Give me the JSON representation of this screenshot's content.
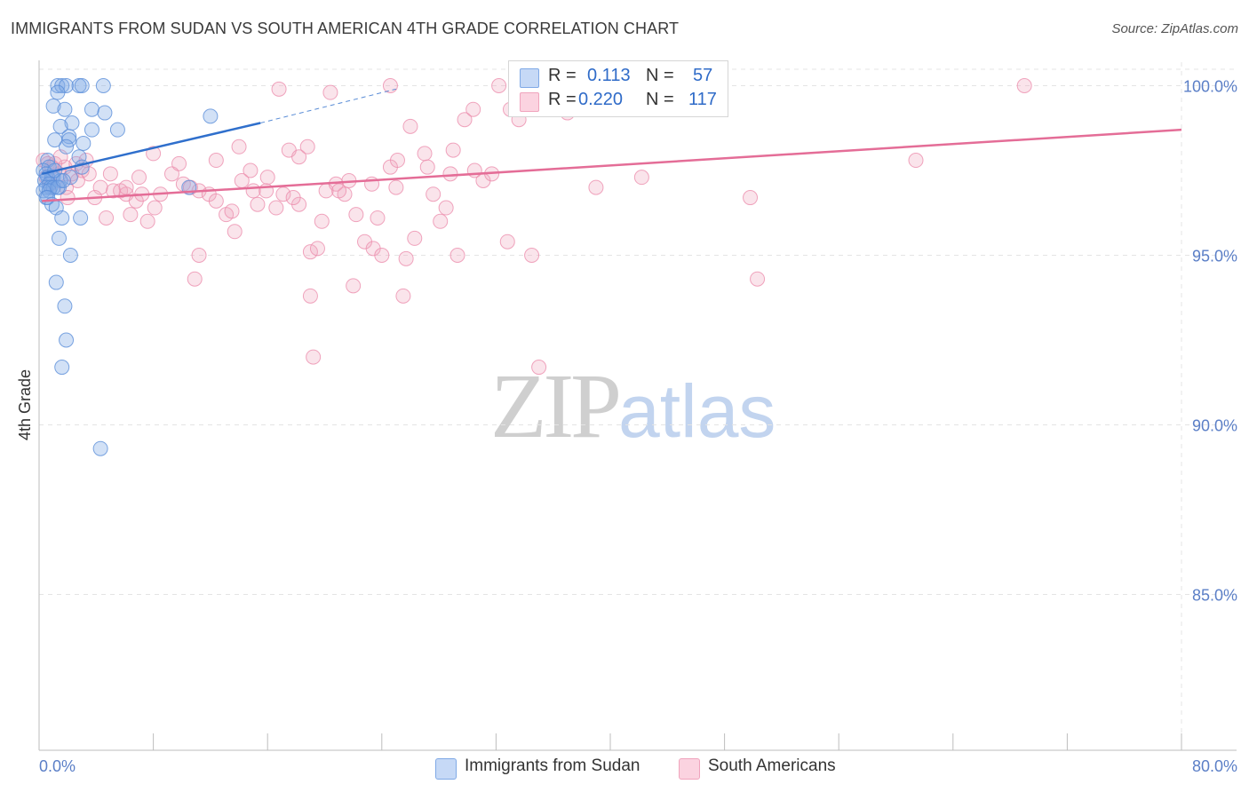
{
  "title": "IMMIGRANTS FROM SUDAN VS SOUTH AMERICAN 4TH GRADE CORRELATION CHART",
  "source": "Source: ZipAtlas.com",
  "watermark": {
    "zip": "ZIP",
    "atlas": "atlas"
  },
  "legend": {
    "r_key": "R =",
    "n_key": "N =",
    "rows": [
      {
        "r": "0.113",
        "n": "57",
        "color": "#7fa9e6"
      },
      {
        "r": "0.220",
        "n": "117",
        "color": "#f0a4bd"
      }
    ]
  },
  "colors": {
    "blue": "#5b8fd9",
    "pink": "#ec8fae",
    "blue_line": "#2f6fcc",
    "pink_line": "#e46d97",
    "grid": "#e4e4e4",
    "tick_text": "#5b7fc7"
  },
  "chart_data": {
    "type": "scatter",
    "title": "IMMIGRANTS FROM SUDAN VS SOUTH AMERICAN 4TH GRADE CORRELATION CHART",
    "xlabel": "",
    "ylabel": "4th Grade",
    "xlim": [
      0,
      80
    ],
    "ylim": [
      80.5,
      100.8
    ],
    "x_tick_labels": [
      "0.0%",
      "80.0%"
    ],
    "y_ticks": [
      {
        "value": 100,
        "label": "100.0%"
      },
      {
        "value": 95,
        "label": "95.0%"
      },
      {
        "value": 90,
        "label": "90.0%"
      },
      {
        "value": 85,
        "label": "85.0%"
      }
    ],
    "grid": true,
    "legend_position": "bottom",
    "series": [
      {
        "name": "Immigrants from Sudan",
        "R": 0.113,
        "N": 57,
        "trend": {
          "x": [
            0.2,
            15.5
          ],
          "y": [
            97.4,
            98.9
          ]
        },
        "trend_extension": {
          "x": [
            15.5,
            25.0
          ],
          "y": [
            98.9,
            99.9
          ]
        },
        "points": [
          [
            1.3,
            100.0
          ],
          [
            1.6,
            100.0
          ],
          [
            1.9,
            100.0
          ],
          [
            2.8,
            100.0
          ],
          [
            3.0,
            100.0
          ],
          [
            4.5,
            100.0
          ],
          [
            1.3,
            99.8
          ],
          [
            1.0,
            99.4
          ],
          [
            1.8,
            99.3
          ],
          [
            3.7,
            99.3
          ],
          [
            4.6,
            99.2
          ],
          [
            12.0,
            99.1
          ],
          [
            2.3,
            98.9
          ],
          [
            1.5,
            98.8
          ],
          [
            3.7,
            98.7
          ],
          [
            5.5,
            98.7
          ],
          [
            2.1,
            98.5
          ],
          [
            1.1,
            98.4
          ],
          [
            2.1,
            98.4
          ],
          [
            3.1,
            98.3
          ],
          [
            1.9,
            98.2
          ],
          [
            2.8,
            97.9
          ],
          [
            0.6,
            97.8
          ],
          [
            0.7,
            97.6
          ],
          [
            3.0,
            97.6
          ],
          [
            0.3,
            97.5
          ],
          [
            0.5,
            97.4
          ],
          [
            1.0,
            97.3
          ],
          [
            0.6,
            97.3
          ],
          [
            0.9,
            97.3
          ],
          [
            0.4,
            97.2
          ],
          [
            1.5,
            97.2
          ],
          [
            0.7,
            97.1
          ],
          [
            0.5,
            97.0
          ],
          [
            0.8,
            97.0
          ],
          [
            1.4,
            97.0
          ],
          [
            1.0,
            97.0
          ],
          [
            0.3,
            96.9
          ],
          [
            0.7,
            96.9
          ],
          [
            1.3,
            97.0
          ],
          [
            0.5,
            96.7
          ],
          [
            0.6,
            96.7
          ],
          [
            0.9,
            96.5
          ],
          [
            1.2,
            96.4
          ],
          [
            1.6,
            96.1
          ],
          [
            2.9,
            96.1
          ],
          [
            1.4,
            95.5
          ],
          [
            2.2,
            95.0
          ],
          [
            1.2,
            94.2
          ],
          [
            1.8,
            93.5
          ],
          [
            1.9,
            92.5
          ],
          [
            1.6,
            91.7
          ],
          [
            4.3,
            89.3
          ],
          [
            1.1,
            97.5
          ],
          [
            2.2,
            97.3
          ],
          [
            10.5,
            97.0
          ],
          [
            1.7,
            97.2
          ]
        ]
      },
      {
        "name": "South Americans",
        "R": 0.22,
        "N": 117,
        "trend": {
          "x": [
            0.2,
            80.0
          ],
          "y": [
            96.6,
            98.7
          ]
        },
        "points": [
          [
            0.3,
            97.8
          ],
          [
            0.6,
            97.7
          ],
          [
            0.9,
            97.6
          ],
          [
            1.1,
            97.7
          ],
          [
            0.5,
            97.3
          ],
          [
            1.4,
            97.4
          ],
          [
            1.8,
            97.6
          ],
          [
            2.3,
            97.4
          ],
          [
            2.6,
            97.7
          ],
          [
            3.0,
            97.5
          ],
          [
            3.5,
            97.4
          ],
          [
            1.9,
            97.0
          ],
          [
            0.8,
            97.1
          ],
          [
            4.3,
            97.0
          ],
          [
            5.2,
            96.9
          ],
          [
            5.7,
            96.9
          ],
          [
            6.1,
            96.8
          ],
          [
            6.8,
            96.6
          ],
          [
            7.2,
            96.8
          ],
          [
            8.1,
            96.4
          ],
          [
            4.7,
            96.1
          ],
          [
            6.4,
            96.2
          ],
          [
            7.6,
            96.0
          ],
          [
            8.5,
            96.8
          ],
          [
            9.3,
            97.4
          ],
          [
            10.1,
            97.1
          ],
          [
            11.2,
            96.9
          ],
          [
            11.9,
            96.8
          ],
          [
            12.4,
            97.8
          ],
          [
            13.1,
            96.2
          ],
          [
            13.7,
            95.7
          ],
          [
            14.2,
            97.2
          ],
          [
            14.8,
            97.5
          ],
          [
            15.3,
            96.5
          ],
          [
            15.9,
            96.9
          ],
          [
            16.6,
            96.4
          ],
          [
            17.1,
            96.8
          ],
          [
            17.5,
            98.1
          ],
          [
            18.2,
            97.9
          ],
          [
            19.0,
            95.1
          ],
          [
            19.5,
            95.2
          ],
          [
            20.1,
            96.9
          ],
          [
            20.8,
            97.1
          ],
          [
            21.4,
            96.8
          ],
          [
            22.2,
            96.2
          ],
          [
            22.8,
            95.4
          ],
          [
            23.4,
            95.2
          ],
          [
            24.0,
            95.0
          ],
          [
            24.6,
            97.6
          ],
          [
            25.1,
            97.8
          ],
          [
            25.7,
            94.9
          ],
          [
            26.3,
            95.5
          ],
          [
            27.0,
            98.0
          ],
          [
            27.6,
            96.8
          ],
          [
            28.1,
            96.0
          ],
          [
            28.8,
            97.4
          ],
          [
            29.3,
            95.0
          ],
          [
            29.8,
            99.0
          ],
          [
            30.4,
            99.3
          ],
          [
            31.1,
            97.2
          ],
          [
            31.7,
            97.4
          ],
          [
            32.2,
            100.0
          ],
          [
            33.0,
            99.3
          ],
          [
            33.6,
            99.0
          ],
          [
            34.5,
            95.0
          ],
          [
            35.2,
            99.7
          ],
          [
            36.1,
            100.0
          ],
          [
            37.0,
            99.2
          ],
          [
            38.5,
            99.9
          ],
          [
            40.0,
            99.5
          ],
          [
            16.8,
            99.9
          ],
          [
            20.4,
            99.8
          ],
          [
            24.6,
            100.0
          ],
          [
            18.8,
            98.2
          ],
          [
            14.0,
            98.2
          ],
          [
            10.6,
            97.0
          ],
          [
            9.8,
            97.7
          ],
          [
            8.0,
            98.0
          ],
          [
            7.0,
            97.3
          ],
          [
            6.1,
            97.0
          ],
          [
            5.0,
            97.4
          ],
          [
            3.9,
            96.7
          ],
          [
            3.3,
            97.8
          ],
          [
            2.7,
            97.2
          ],
          [
            1.5,
            97.9
          ],
          [
            2.0,
            96.7
          ],
          [
            11.2,
            95.0
          ],
          [
            13.5,
            96.3
          ],
          [
            16.0,
            97.3
          ],
          [
            18.2,
            96.5
          ],
          [
            19.8,
            96.0
          ],
          [
            21.7,
            97.2
          ],
          [
            23.7,
            96.1
          ],
          [
            25.0,
            97.0
          ],
          [
            27.2,
            97.6
          ],
          [
            28.5,
            96.4
          ],
          [
            30.5,
            97.5
          ],
          [
            32.8,
            95.4
          ],
          [
            35.0,
            91.7
          ],
          [
            19.0,
            93.8
          ],
          [
            22.0,
            94.1
          ],
          [
            25.5,
            93.8
          ],
          [
            10.9,
            94.3
          ],
          [
            19.2,
            92.0
          ],
          [
            26.0,
            98.8
          ],
          [
            29.0,
            98.1
          ],
          [
            39.0,
            97.0
          ],
          [
            42.2,
            97.3
          ],
          [
            49.8,
            96.7
          ],
          [
            50.3,
            94.3
          ],
          [
            61.4,
            97.8
          ],
          [
            69.0,
            100.0
          ],
          [
            12.4,
            96.6
          ],
          [
            15.0,
            96.9
          ],
          [
            17.8,
            96.7
          ],
          [
            21.0,
            96.9
          ],
          [
            23.3,
            97.1
          ]
        ]
      }
    ]
  },
  "bottom_legend": [
    {
      "label": "Immigrants from Sudan",
      "color": "#7fa9e6"
    },
    {
      "label": "South Americans",
      "color": "#f0a4bd"
    }
  ]
}
